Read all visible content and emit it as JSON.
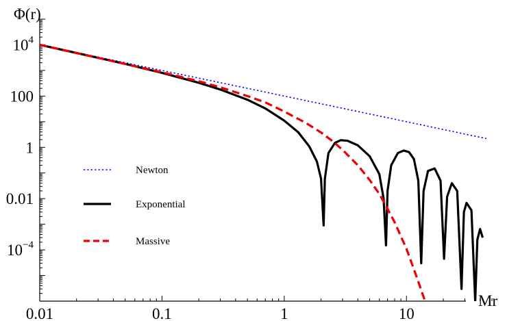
{
  "chart_data": {
    "type": "line",
    "title": "",
    "xlabel": "Mr",
    "ylabel": "Φ(r)",
    "x_scale": "log",
    "y_scale": "log",
    "xlim": [
      0.01,
      50
    ],
    "ylim": [
      1e-06,
      100000
    ],
    "grid": false,
    "legend_position": "left-center",
    "x_ticks": [
      {
        "value": 0.01,
        "label": "0.01"
      },
      {
        "value": 0.1,
        "label": "0.1"
      },
      {
        "value": 1,
        "label": "1"
      },
      {
        "value": 10,
        "label": "10"
      }
    ],
    "y_ticks": [
      {
        "value": 10000,
        "base": "10",
        "exp": "4"
      },
      {
        "value": 100,
        "base": "100",
        "exp": ""
      },
      {
        "value": 1,
        "base": "1",
        "exp": ""
      },
      {
        "value": 0.01,
        "base": "0.01",
        "exp": ""
      },
      {
        "value": 0.0001,
        "base": "10",
        "exp": "−4"
      }
    ],
    "series": [
      {
        "name": "Newton",
        "color": "#0000ee",
        "style": "dotted",
        "points": [
          [
            0.01,
            10000
          ],
          [
            0.1,
            1000
          ],
          [
            1,
            100
          ],
          [
            10,
            10
          ],
          [
            45,
            2.2
          ]
        ]
      },
      {
        "name": "Exponential",
        "color": "#000000",
        "style": "solid",
        "points": [
          [
            0.01,
            10000
          ],
          [
            0.05,
            1810
          ],
          [
            0.1,
            805
          ],
          [
            0.2,
            330
          ],
          [
            0.3,
            180
          ],
          [
            0.5,
            72
          ],
          [
            0.7,
            33
          ],
          [
            1.0,
            11
          ],
          [
            1.3,
            3.9
          ],
          [
            1.6,
            1.1
          ],
          [
            1.85,
            0.28
          ],
          [
            2.0,
            0.06
          ],
          [
            2.1,
            0.0009
          ],
          [
            2.15,
            0.06
          ],
          [
            2.3,
            0.6
          ],
          [
            2.6,
            1.5
          ],
          [
            2.9,
            1.9
          ],
          [
            3.3,
            1.8
          ],
          [
            4.0,
            1.2
          ],
          [
            5.0,
            0.45
          ],
          [
            6.0,
            0.09
          ],
          [
            6.5,
            0.01
          ],
          [
            6.8,
            0.00015
          ],
          [
            7.0,
            0.02
          ],
          [
            7.5,
            0.2
          ],
          [
            8.5,
            0.6
          ],
          [
            9.5,
            0.75
          ],
          [
            10.5,
            0.65
          ],
          [
            11.5,
            0.35
          ],
          [
            12.5,
            0.05
          ],
          [
            13.2,
            3e-05
          ],
          [
            13.8,
            0.02
          ],
          [
            15,
            0.12
          ],
          [
            17,
            0.15
          ],
          [
            19,
            0.05
          ],
          [
            20.3,
            4.5e-05
          ],
          [
            21.5,
            0.012
          ],
          [
            23.5,
            0.04
          ],
          [
            26,
            0.02
          ],
          [
            28.2,
            3e-06
          ],
          [
            29.5,
            0.003
          ],
          [
            31,
            0.0068
          ],
          [
            34,
            0.0035
          ],
          [
            36.5,
            1e-06
          ],
          [
            38,
            0.00025
          ],
          [
            40,
            0.00065
          ],
          [
            42,
            0.0003
          ]
        ]
      },
      {
        "name": "Massive",
        "color": "#ee0000",
        "style": "dashed",
        "points": [
          [
            0.01,
            10000
          ],
          [
            0.1,
            850
          ],
          [
            0.2,
            380
          ],
          [
            0.3,
            220
          ],
          [
            0.5,
            100
          ],
          [
            0.7,
            57
          ],
          [
            1.0,
            25
          ],
          [
            1.5,
            9
          ],
          [
            2.0,
            3.8
          ],
          [
            2.5,
            1.7
          ],
          [
            3.0,
            0.8
          ],
          [
            4.0,
            0.2
          ],
          [
            5.0,
            0.053
          ],
          [
            6.0,
            0.015
          ],
          [
            7.0,
            0.004
          ],
          [
            8.0,
            0.0012
          ],
          [
            10.0,
            0.00011
          ],
          [
            12.0,
            1e-05
          ],
          [
            14.0,
            1.2e-06
          ],
          [
            15.2,
            3e-07
          ]
        ]
      }
    ]
  }
}
